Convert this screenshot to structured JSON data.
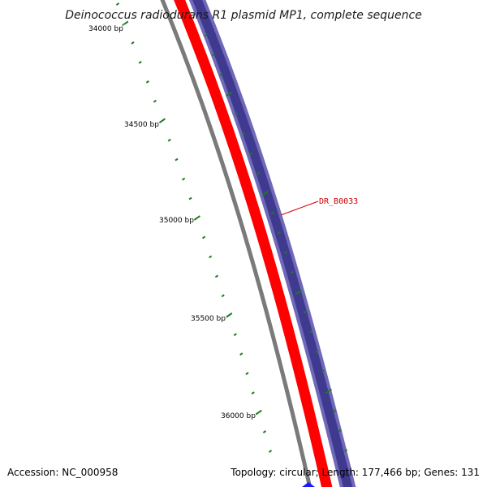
{
  "title": "Deinococcus radiodurans R1 plasmid MP1, complete sequence",
  "footer": {
    "accession": "Accession: NC_000958",
    "summary": "Topology: circular; Length: 177,466 bp; Genes: 131"
  },
  "ruler": {
    "major_labels": [
      "34000 bp",
      "34500 bp",
      "35000 bp",
      "35500 bp",
      "36000 bp"
    ],
    "tick_color": "#1e7a1e"
  },
  "rings": [
    {
      "role": "backbone",
      "color": "#7a7a7a"
    },
    {
      "role": "reverse-strand-cds",
      "color": "#ff0000"
    },
    {
      "role": "forward-strand-cds",
      "color": "#3f3a8f",
      "edge_color": "#6f69b8"
    }
  ],
  "features": [
    {
      "label": "DR_B0033",
      "color": "#cc0000"
    }
  ],
  "colors": {
    "background": "#ffffff",
    "marker": "#1a1aff"
  }
}
